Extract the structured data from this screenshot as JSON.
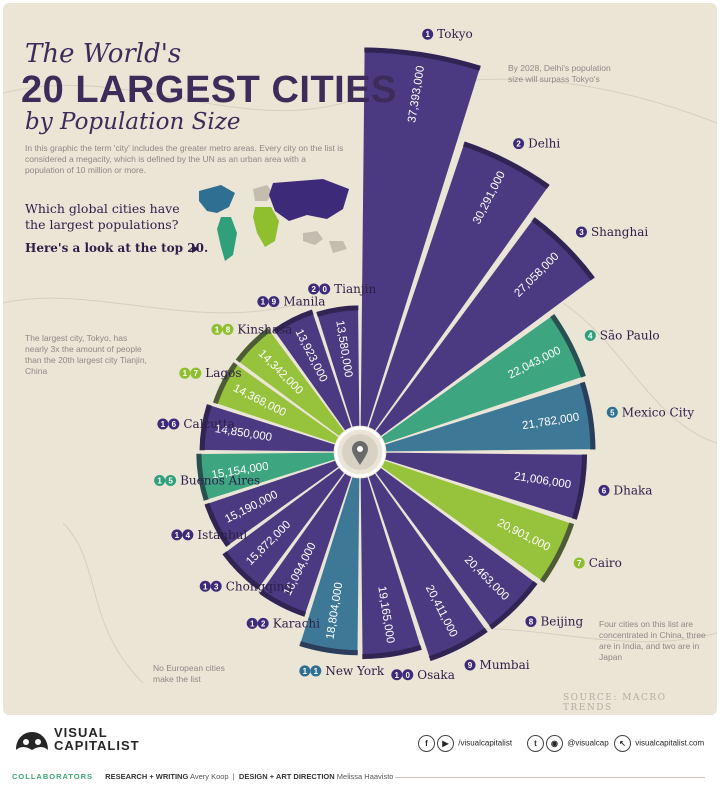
{
  "header": {
    "title_top": "The World's",
    "title_main": "20 LARGEST CITIES",
    "title_sub": "by Population Size",
    "intro": "In this graphic the term 'city' includes the greater metro areas. Every city on the list is considered a megacity, which is defined by the UN as an urban area with a population of 10 million or more.",
    "question": "Which global cities have the largest populations?",
    "cta": "Here's a look at the top 20."
  },
  "notes": {
    "delhi": "By 2028, Delhi's population size will surpass Tokyo's",
    "tokyo": "The largest city, Tokyo, has nearly 3x the amount of people than the 20th largest city Tianjin, China",
    "china": "Four cities on this list are concentrated in China, three are in India, and two are in Japan",
    "europe": "No European cities make the list"
  },
  "source": "SOURCE: MACRO TRENDS",
  "footer": {
    "logo_line1": "VISUAL",
    "logo_line2": "CAPITALIST",
    "social1": "/visualcapitalist",
    "social2": "@visualcap",
    "social3": "visualcapitalist.com",
    "collaborators": "COLLABORATORS",
    "research_label": "RESEARCH + WRITING",
    "research_name": "Avery Koop",
    "design_label": "DESIGN + ART DIRECTION",
    "design_name": "Melissa Haavisto"
  },
  "colors": {
    "asia": "#3d2b7a",
    "south_america": "#2fa07a",
    "north_america": "#2f6f91",
    "africa": "#8fbf2f",
    "title": "#3d2b5a",
    "background": "#ebe5d6"
  },
  "chart_data": {
    "type": "radial-bar",
    "title": "The World's 20 Largest Cities by Population Size",
    "categories": [
      "Tokyo",
      "Delhi",
      "Shanghai",
      "São Paulo",
      "Mexico City",
      "Dhaka",
      "Cairo",
      "Beijing",
      "Mumbai",
      "Osaka",
      "New York",
      "Karachi",
      "Chongqing",
      "Istanbul",
      "Buenos Aires",
      "Calcutta",
      "Lagos",
      "Kinshasa",
      "Manila",
      "Tianjin"
    ],
    "ranks": [
      "1",
      "2",
      "3",
      "4",
      "5",
      "6",
      "7",
      "8",
      "9",
      "10",
      "11",
      "12",
      "13",
      "14",
      "15",
      "16",
      "17",
      "18",
      "19",
      "20"
    ],
    "values": [
      37393000,
      30291000,
      27058000,
      22043000,
      21782000,
      21006000,
      20901000,
      20463000,
      20411000,
      19165000,
      18804000,
      16094000,
      15872000,
      15190000,
      15154000,
      14850000,
      14368000,
      14342000,
      13923000,
      13580000
    ],
    "value_labels": [
      "37,393,000",
      "30,291,000",
      "27,058,000",
      "22,043,000",
      "21,782,000",
      "21,006,000",
      "20,901,000",
      "20,463,000",
      "20,411,000",
      "19,165,000",
      "18,804,000",
      "16,094,000",
      "15,872,000",
      "15,190,000",
      "15,154,000",
      "14,850,000",
      "14,368,000",
      "14,342,000",
      "13,923,000",
      "13,580,000"
    ],
    "regions": [
      "asia",
      "asia",
      "asia",
      "south_america",
      "north_america",
      "asia",
      "africa",
      "asia",
      "asia",
      "asia",
      "north_america",
      "asia",
      "asia",
      "asia",
      "south_america",
      "asia",
      "africa",
      "africa",
      "asia",
      "asia"
    ]
  }
}
